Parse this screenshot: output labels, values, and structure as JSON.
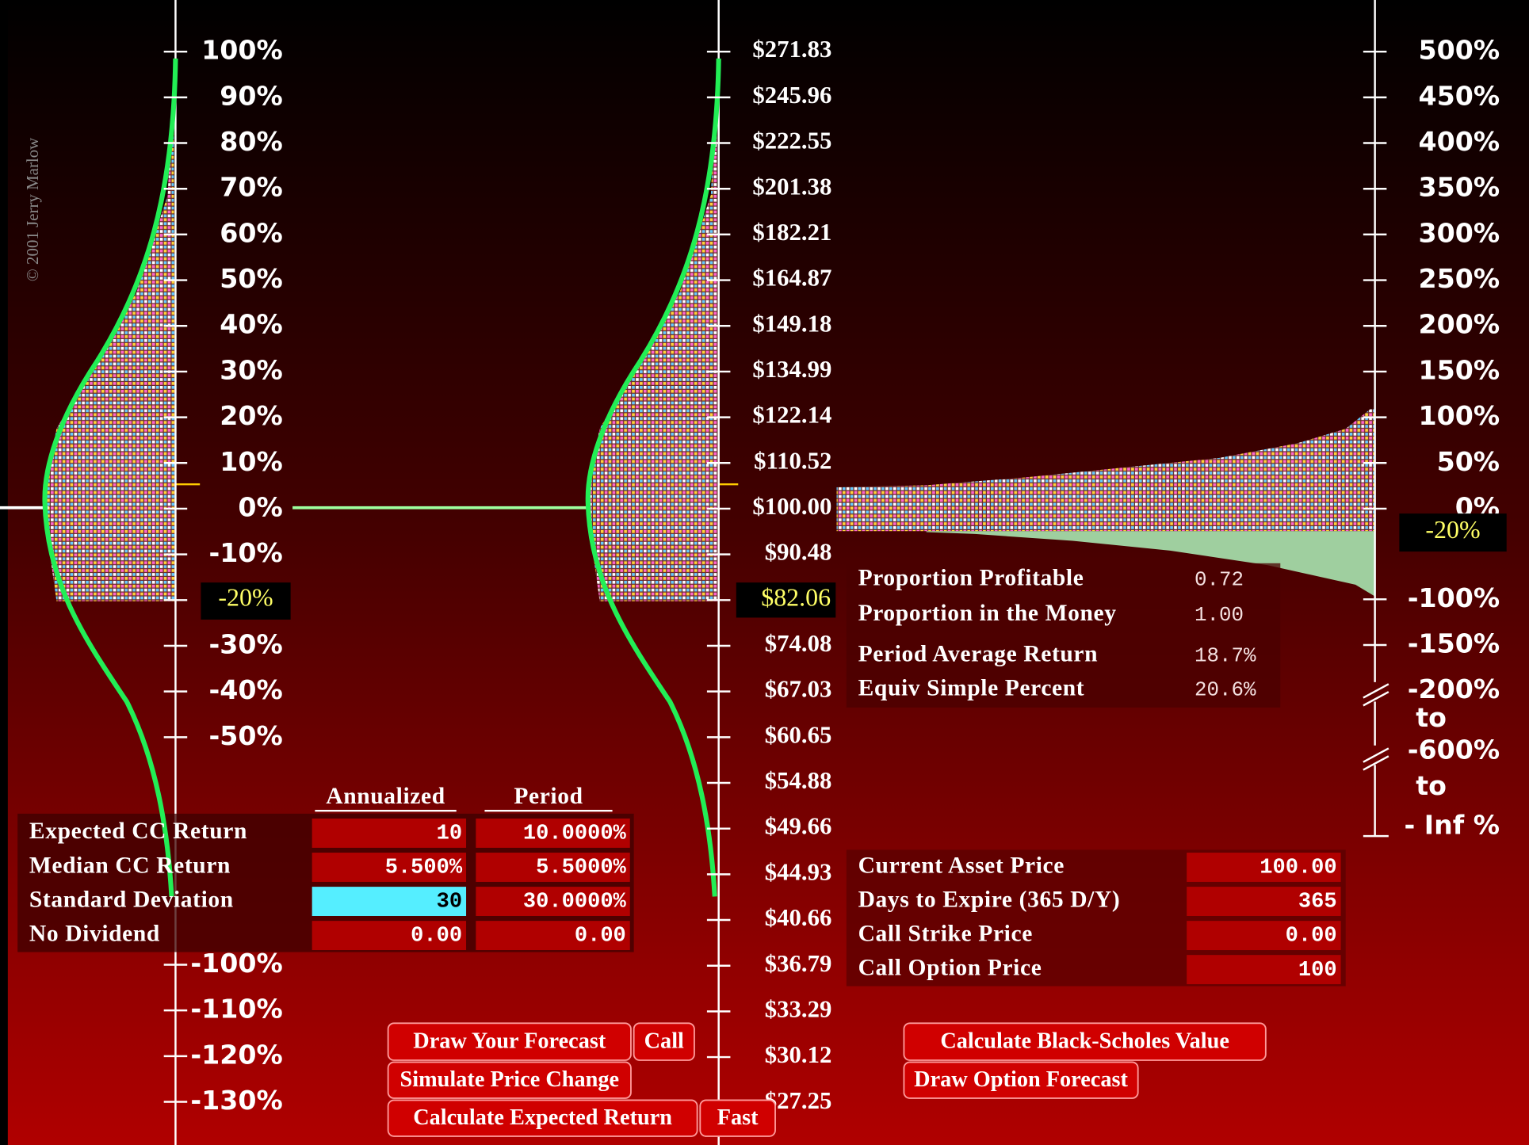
{
  "copyright": "© 2001 Jerry Marlow",
  "left_axis": {
    "upper_labels": [
      "100%",
      "90%",
      "80%",
      "70%",
      "60%",
      "50%",
      "40%",
      "30%",
      "20%",
      "10%",
      "0%",
      "-10%",
      "-20%",
      "-30%",
      "-40%",
      "-50%"
    ],
    "lower_labels": [
      "-100%",
      "-110%",
      "-120%",
      "-130%"
    ]
  },
  "price_axis": {
    "labels": [
      "$271.83",
      "$245.96",
      "$222.55",
      "$201.38",
      "$182.21",
      "$164.87",
      "$149.18",
      "$134.99",
      "$122.14",
      "$110.52",
      "$100.00",
      "$90.48",
      "$82.06",
      "$74.08",
      "$67.03",
      "$60.65",
      "$54.88",
      "$49.66",
      "$44.93",
      "$40.66",
      "$36.79",
      "$33.29",
      "$30.12",
      "$27.25"
    ]
  },
  "right_axis": {
    "upper_labels": [
      "500%",
      "450%",
      "400%",
      "350%",
      "300%",
      "250%",
      "200%",
      "150%",
      "100%",
      "50%",
      "0%"
    ],
    "marker": "-20%",
    "lower_labels": [
      "-100%",
      "-150%",
      "-200%"
    ],
    "range_labels": [
      "to",
      "-600%",
      "to",
      "- Inf %"
    ]
  },
  "results": [
    {
      "label": "Proportion Profitable",
      "value": "0.72"
    },
    {
      "label": "Proportion in the Money",
      "value": "1.00"
    },
    {
      "label": "Period Average Return",
      "value": "18.7%"
    },
    {
      "label": "Equiv Simple Percent",
      "value": "20.6%"
    }
  ],
  "forecast_table": {
    "headers": [
      "Annualized",
      "Period"
    ],
    "rows": [
      {
        "label": "Expected CC Return",
        "annualized": "10",
        "period": "10.0000%"
      },
      {
        "label": "Median CC Return",
        "annualized": "5.500%",
        "period": "5.5000%"
      },
      {
        "label": "Standard Deviation",
        "annualized": "30",
        "period": "30.0000%"
      },
      {
        "label": "No Dividend",
        "annualized": "0.00",
        "period": "0.00"
      }
    ]
  },
  "option_table": {
    "rows": [
      {
        "label": "Current Asset Price",
        "value": "100.00"
      },
      {
        "label": "Days to Expire (365 D/Y)",
        "value": "365"
      },
      {
        "label": "Call Strike Price",
        "value": "0.00"
      },
      {
        "label": "Call Option Price",
        "value": "100"
      }
    ]
  },
  "buttons": [
    "Draw Your Forecast",
    "Call",
    "Simulate Price Change",
    "Calculate Expected Return",
    "Fast",
    "Calculate Black-Scholes Value",
    "Draw Option Forecast"
  ]
}
